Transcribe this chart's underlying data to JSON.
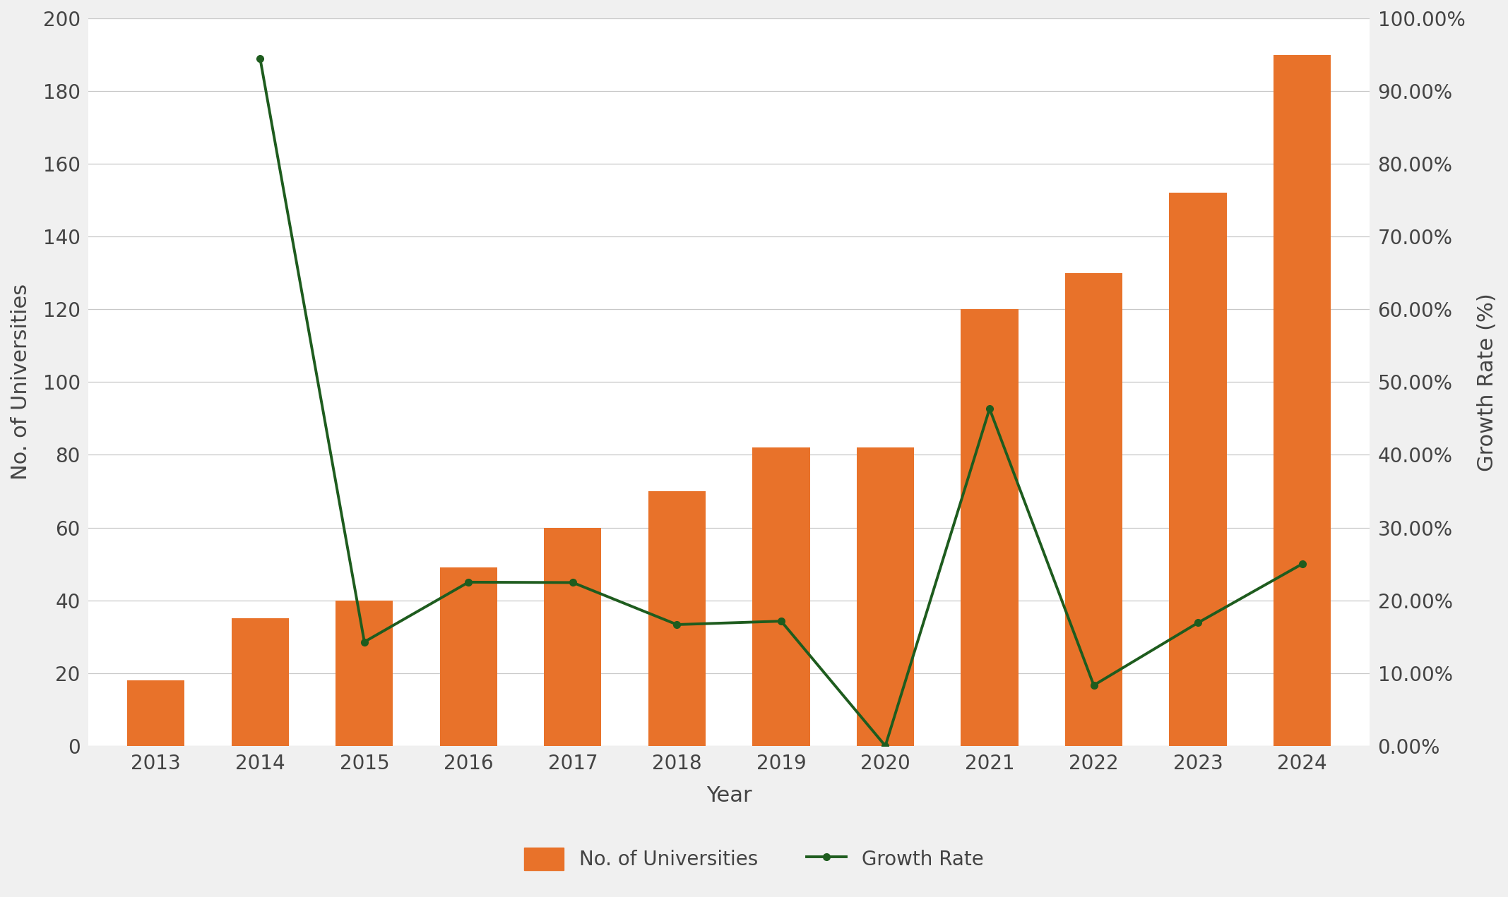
{
  "years": [
    2013,
    2014,
    2015,
    2016,
    2017,
    2018,
    2019,
    2020,
    2021,
    2022,
    2023,
    2024
  ],
  "universities": [
    18,
    35,
    40,
    49,
    60,
    70,
    82,
    82,
    120,
    130,
    152,
    190
  ],
  "growth_rate": [
    null,
    0.9444,
    0.1429,
    0.225,
    0.2245,
    0.1667,
    0.1714,
    0.0,
    0.4634,
    0.0833,
    0.1692,
    0.25
  ],
  "bar_color": "#E8722A",
  "line_color": "#1E5C1E",
  "plot_bg_color": "#FFFFFF",
  "fig_bg_color": "#F0F0F0",
  "ylabel_left": "No. of Universities",
  "ylabel_right": "Growth Rate (%)",
  "xlabel": "Year",
  "legend_bar": "No. of Universities",
  "legend_line": "Growth Rate",
  "ylim_left": [
    0,
    200
  ],
  "ylim_right": [
    0,
    1.0
  ],
  "yticks_left": [
    0,
    20,
    40,
    60,
    80,
    100,
    120,
    140,
    160,
    180,
    200
  ],
  "yticks_right": [
    0.0,
    0.1,
    0.2,
    0.3,
    0.4,
    0.5,
    0.6,
    0.7,
    0.8,
    0.9,
    1.0
  ],
  "ytick_labels_right": [
    "0.00%",
    "10.00%",
    "20.00%",
    "30.00%",
    "40.00%",
    "50.00%",
    "60.00%",
    "70.00%",
    "80.00%",
    "90.00%",
    "100.00%"
  ],
  "grid_color": "#C8C8C8",
  "text_color": "#444444",
  "line_width": 2.8,
  "marker": "o",
  "marker_size": 7,
  "axis_label_fontsize": 22,
  "tick_fontsize": 20,
  "legend_fontsize": 20,
  "bar_width": 0.55
}
